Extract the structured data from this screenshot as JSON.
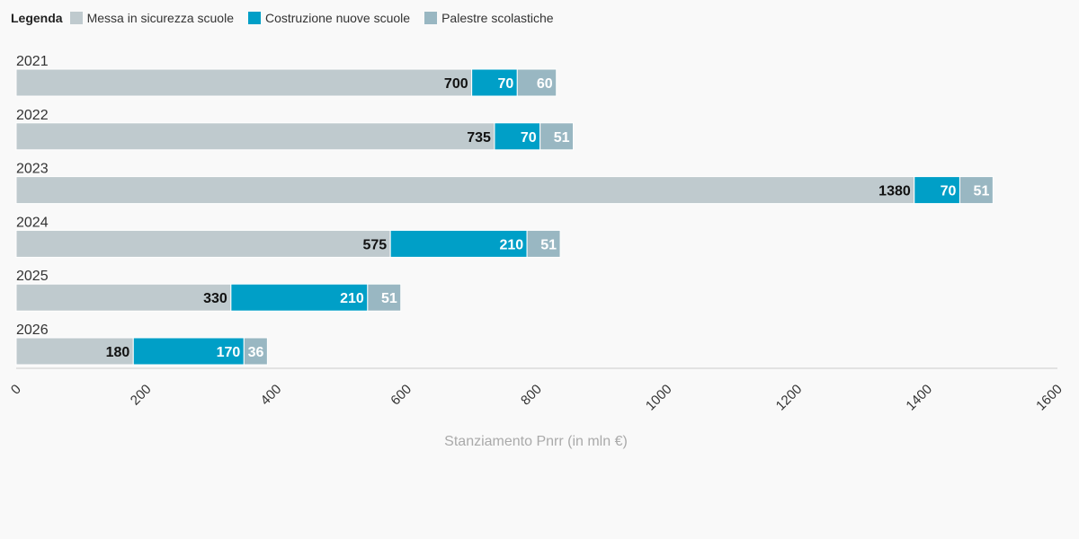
{
  "legend": {
    "title": "Legenda",
    "items": [
      {
        "label": "Messa in sicurezza scuole",
        "color": "#bfcace"
      },
      {
        "label": "Costruzione nuove scuole",
        "color": "#009fc7"
      },
      {
        "label": "Palestre scolastiche",
        "color": "#99b7c2"
      }
    ]
  },
  "chart_data": {
    "type": "bar",
    "orientation": "horizontal",
    "stacked": true,
    "categories": [
      "2021",
      "2022",
      "2023",
      "2024",
      "2025",
      "2026"
    ],
    "series": [
      {
        "name": "Messa in sicurezza scuole",
        "values": [
          700,
          735,
          1380,
          575,
          330,
          180
        ],
        "color": "#bfcace",
        "label_color": "#111111"
      },
      {
        "name": "Costruzione nuove scuole",
        "values": [
          70,
          70,
          70,
          210,
          210,
          170
        ],
        "color": "#009fc7",
        "label_color": "#ffffff"
      },
      {
        "name": "Palestre scolastiche",
        "values": [
          60,
          51,
          51,
          51,
          51,
          36
        ],
        "color": "#99b7c2",
        "label_color": "#ffffff"
      }
    ],
    "xlabel": "Stanziamento Pnrr (in mln €)",
    "xlim": [
      0,
      1600
    ],
    "xticks": [
      0,
      200,
      400,
      600,
      800,
      1000,
      1200,
      1400,
      1600
    ],
    "grid": false,
    "legend_position": "top-left"
  }
}
